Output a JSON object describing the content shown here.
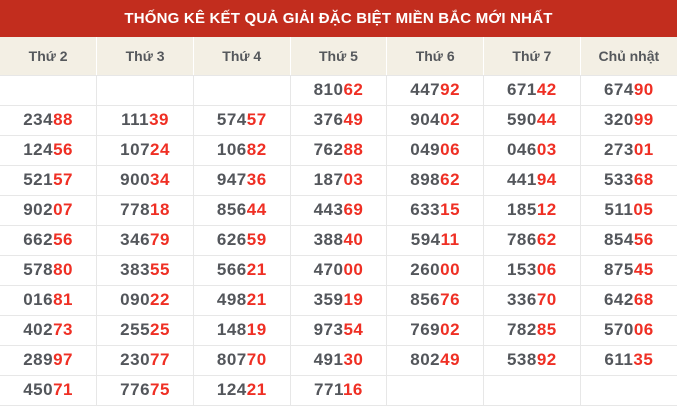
{
  "title": "THỐNG KÊ KẾT QUẢ GIẢI ĐẶC BIỆT MIỀN BẮC MỚI NHẤT",
  "table": {
    "columns": [
      "Thứ 2",
      "Thứ 3",
      "Thứ 4",
      "Thứ 5",
      "Thứ 6",
      "Thứ 7",
      "Chủ nhật"
    ],
    "red_digit_count": 2,
    "rows": [
      [
        "",
        "",
        "",
        "81062",
        "44792",
        "67142",
        "67490"
      ],
      [
        "23488",
        "11139",
        "57457",
        "37649",
        "90402",
        "59044",
        "32099"
      ],
      [
        "12456",
        "10724",
        "10682",
        "76288",
        "04906",
        "04603",
        "27301"
      ],
      [
        "52157",
        "90034",
        "94736",
        "18703",
        "89862",
        "44194",
        "53368"
      ],
      [
        "90207",
        "77818",
        "85644",
        "44369",
        "63315",
        "18512",
        "51105"
      ],
      [
        "66256",
        "34679",
        "62659",
        "38840",
        "59411",
        "78662",
        "85456"
      ],
      [
        "57880",
        "38355",
        "56621",
        "47000",
        "26000",
        "15306",
        "87545"
      ],
      [
        "01681",
        "09022",
        "49821",
        "35919",
        "85676",
        "33670",
        "64268"
      ],
      [
        "40273",
        "25525",
        "14819",
        "97354",
        "76902",
        "78285",
        "57006"
      ],
      [
        "28997",
        "23077",
        "80770",
        "49130",
        "80249",
        "53892",
        "61135"
      ],
      [
        "45071",
        "77675",
        "12421",
        "77116",
        "",
        "",
        ""
      ]
    ]
  },
  "colors": {
    "title_bg": "#c22d1e",
    "title_text": "#ffffff",
    "thead_bg": "#f3efe4",
    "thead_text": "#55585c",
    "digit_dark": "#53565b",
    "digit_red": "#ef2f24",
    "cell_border": "#e7e7e7",
    "cell_bg": "#ffffff"
  }
}
